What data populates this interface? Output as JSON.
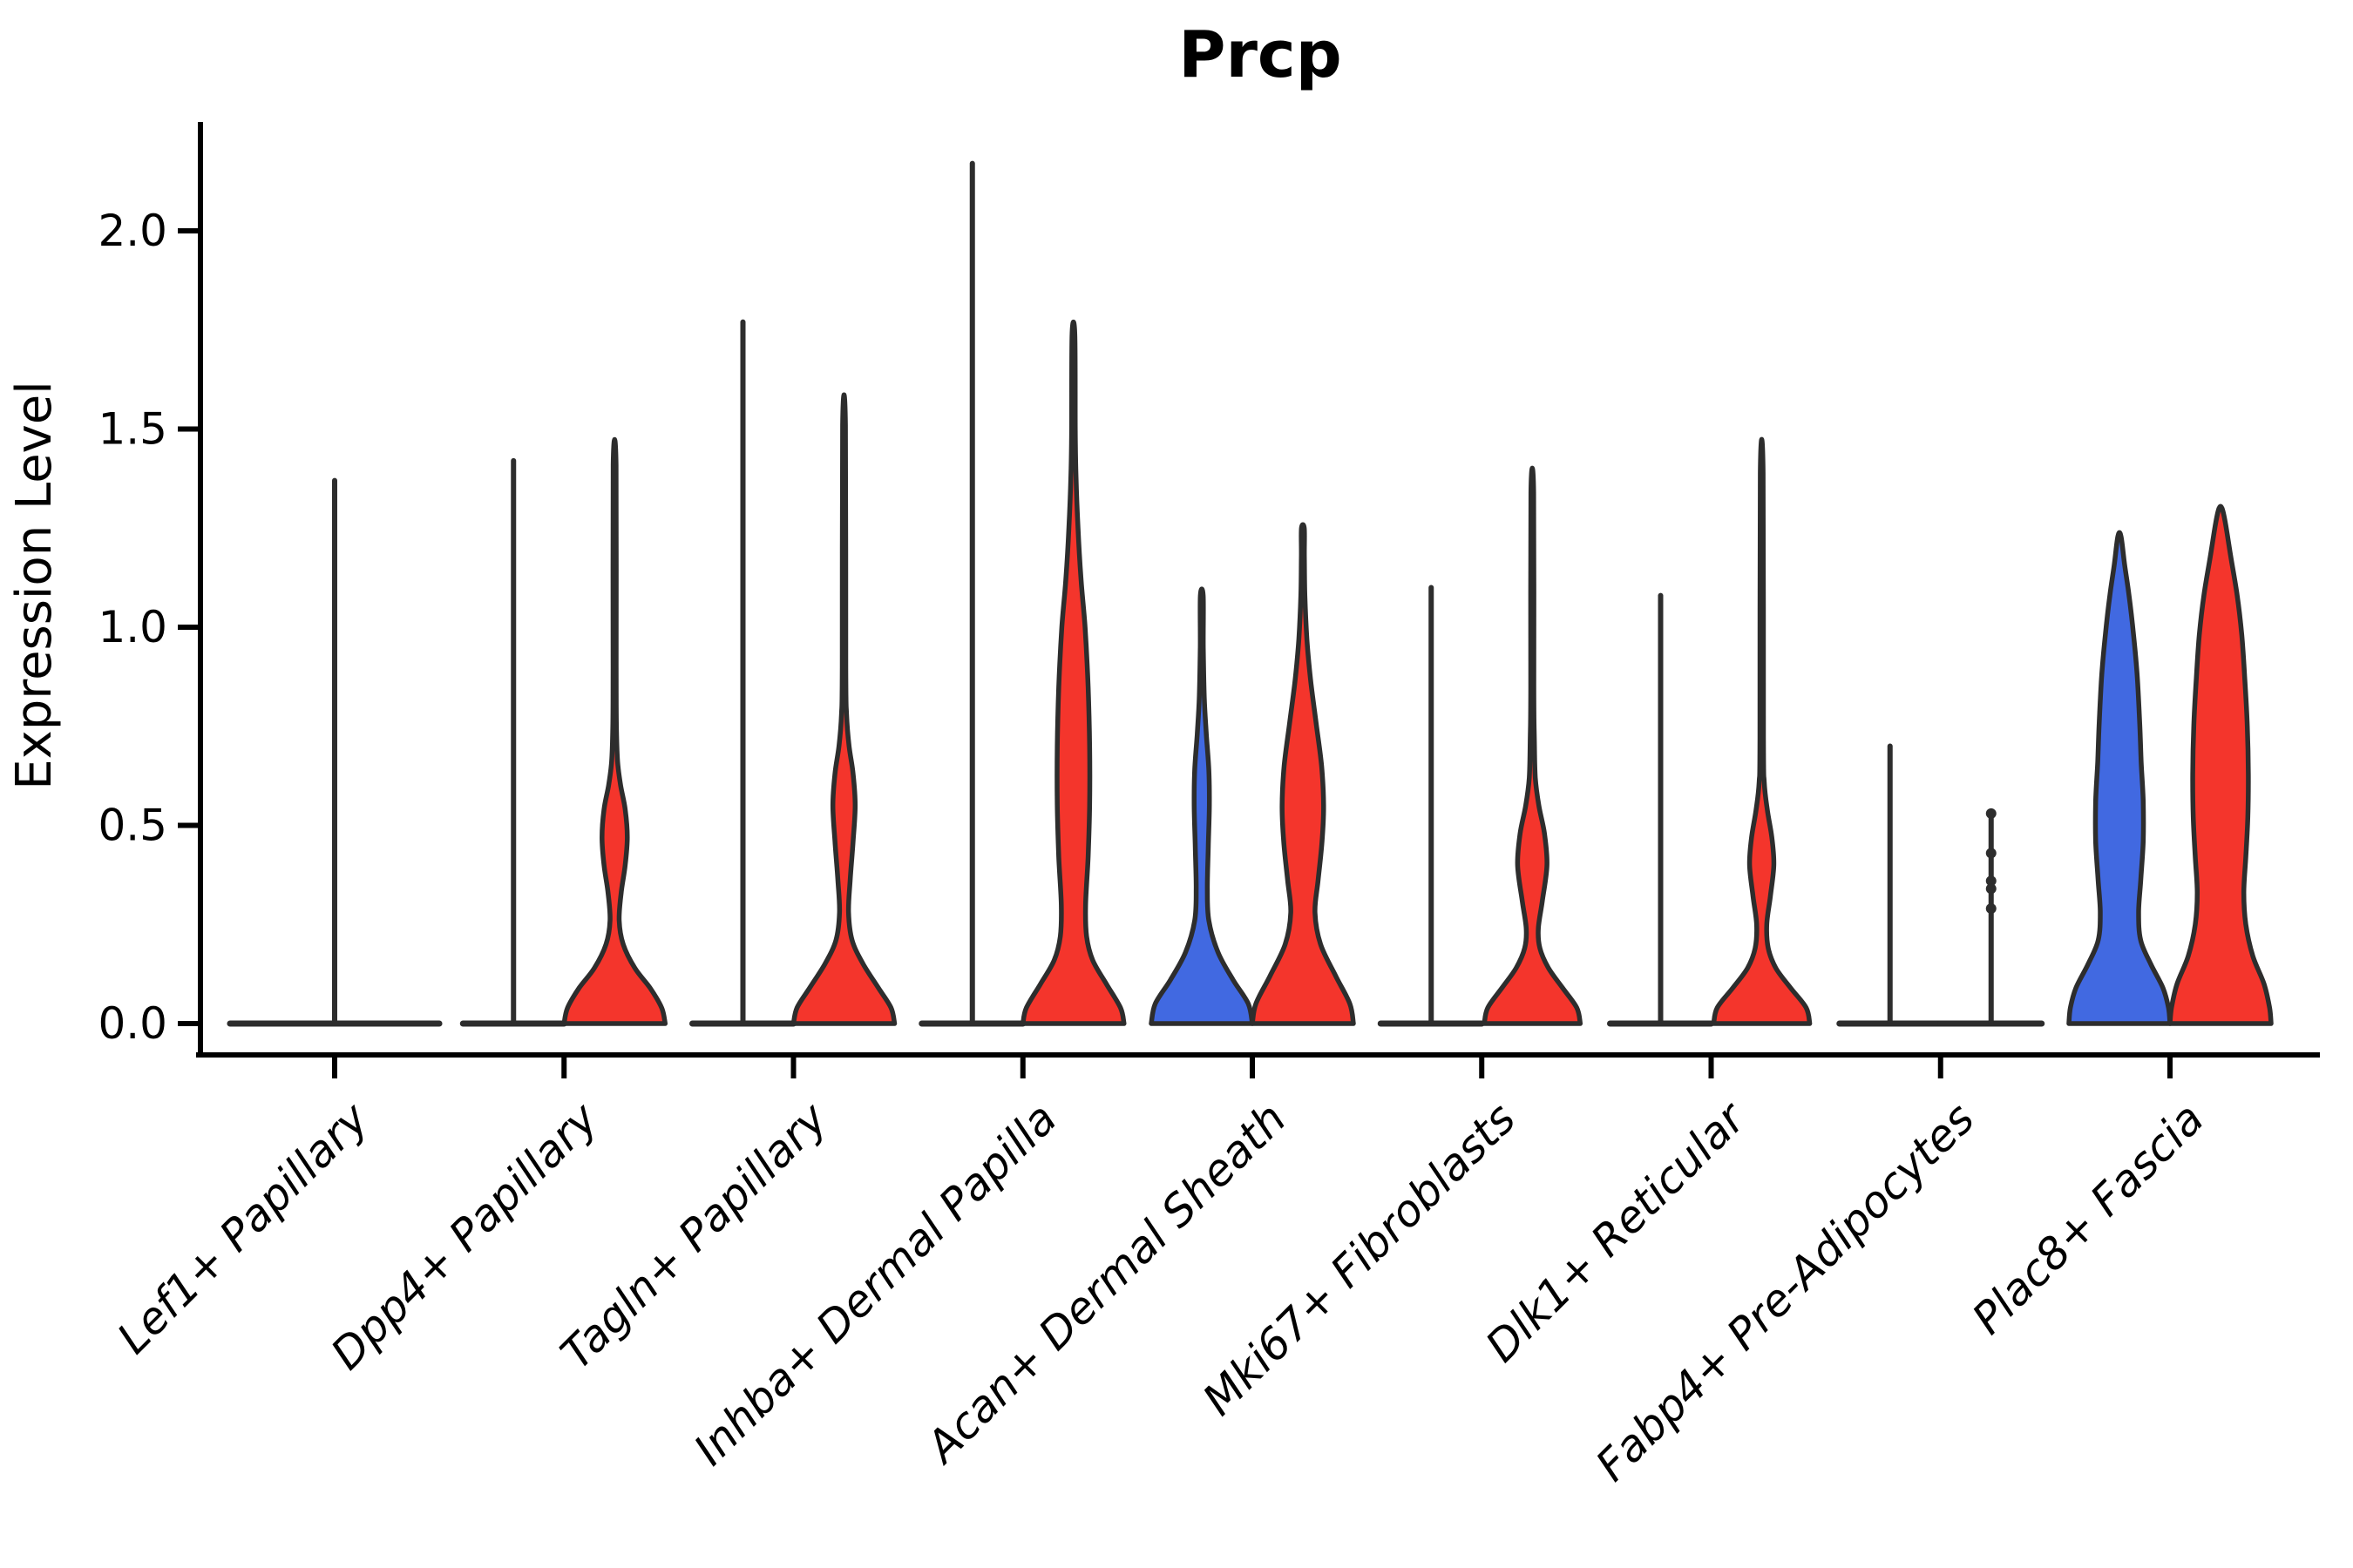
{
  "chart_data": {
    "type": "violin",
    "title": "Prcp",
    "xlabel": "",
    "ylabel": "Expression Level",
    "yticks": [
      0.0,
      0.5,
      1.0,
      1.5,
      2.0
    ],
    "ytick_labels": [
      "0.0",
      "0.5",
      "1.0",
      "1.5",
      "2.0"
    ],
    "ylim": [
      -0.08,
      2.27
    ],
    "grid": false,
    "legend": "none",
    "colors": {
      "blue": "#4169e1",
      "red": "#f4352c",
      "outline": "#2d2d2d",
      "axis": "#000000"
    },
    "categories": [
      "Lef1+ Papillary",
      "Dpp4+ Papillary",
      "Tagln+ Papillary",
      "Inhba+ Dermal Papilla",
      "Acan+ Dermal Sheath",
      "Mki67+ Fibroblasts",
      "Dlk1+ Reticular",
      "Fabp4+ Pre-Adipocytes",
      "Plac8+ Fascia"
    ],
    "violins": [
      {
        "category": "Lef1+ Papillary",
        "side": "full",
        "color": "none",
        "flat": true,
        "max": 1.37,
        "halfwidth_frac": 2.07
      },
      {
        "category": "Dpp4+ Papillary",
        "side": "left",
        "color": "blue",
        "flat": true,
        "max": 1.42
      },
      {
        "category": "Dpp4+ Papillary",
        "side": "right",
        "color": "red",
        "flat": false,
        "max": 1.41,
        "profile": [
          [
            0,
            1.0
          ],
          [
            0.04,
            0.93
          ],
          [
            0.09,
            0.7
          ],
          [
            0.14,
            0.4
          ],
          [
            0.2,
            0.17
          ],
          [
            0.26,
            0.09
          ],
          [
            0.33,
            0.13
          ],
          [
            0.4,
            0.21
          ],
          [
            0.47,
            0.25
          ],
          [
            0.54,
            0.21
          ],
          [
            0.6,
            0.12
          ],
          [
            0.66,
            0.06
          ],
          [
            0.75,
            0.035
          ],
          [
            0.9,
            0.03
          ]
        ]
      },
      {
        "category": "Tagln+ Papillary",
        "side": "left",
        "color": "blue",
        "flat": true,
        "max": 1.77
      },
      {
        "category": "Tagln+ Papillary",
        "side": "right",
        "color": "red",
        "flat": false,
        "max": 1.51,
        "profile": [
          [
            0,
            1.0
          ],
          [
            0.04,
            0.93
          ],
          [
            0.09,
            0.68
          ],
          [
            0.15,
            0.38
          ],
          [
            0.21,
            0.16
          ],
          [
            0.28,
            0.09
          ],
          [
            0.36,
            0.12
          ],
          [
            0.46,
            0.18
          ],
          [
            0.55,
            0.22
          ],
          [
            0.63,
            0.18
          ],
          [
            0.7,
            0.1
          ],
          [
            0.78,
            0.05
          ],
          [
            0.9,
            0.035
          ]
        ]
      },
      {
        "category": "Inhba+ Dermal Papilla",
        "side": "left",
        "color": "blue",
        "flat": true,
        "max": 2.17
      },
      {
        "category": "Inhba+ Dermal Papilla",
        "side": "right",
        "color": "red",
        "flat": false,
        "max": 1.74,
        "profile": [
          [
            0,
            1.0
          ],
          [
            0.04,
            0.93
          ],
          [
            0.1,
            0.65
          ],
          [
            0.16,
            0.38
          ],
          [
            0.22,
            0.26
          ],
          [
            0.3,
            0.24
          ],
          [
            0.42,
            0.29
          ],
          [
            0.55,
            0.32
          ],
          [
            0.7,
            0.32
          ],
          [
            0.85,
            0.29
          ],
          [
            1.0,
            0.23
          ],
          [
            1.12,
            0.15
          ],
          [
            1.25,
            0.09
          ],
          [
            1.38,
            0.05
          ],
          [
            1.5,
            0.035
          ]
        ]
      },
      {
        "category": "Acan+ Dermal Sheath",
        "side": "left",
        "color": "blue",
        "flat": false,
        "max": 1.08,
        "profile": [
          [
            0,
            1.0
          ],
          [
            0.05,
            0.92
          ],
          [
            0.11,
            0.62
          ],
          [
            0.18,
            0.32
          ],
          [
            0.26,
            0.14
          ],
          [
            0.34,
            0.11
          ],
          [
            0.45,
            0.13
          ],
          [
            0.55,
            0.15
          ],
          [
            0.64,
            0.14
          ],
          [
            0.73,
            0.09
          ],
          [
            0.82,
            0.05
          ],
          [
            0.95,
            0.03
          ]
        ]
      },
      {
        "category": "Acan+ Dermal Sheath",
        "side": "right",
        "color": "red",
        "flat": false,
        "max": 1.25,
        "profile": [
          [
            0,
            1.0
          ],
          [
            0.05,
            0.93
          ],
          [
            0.12,
            0.65
          ],
          [
            0.2,
            0.35
          ],
          [
            0.28,
            0.24
          ],
          [
            0.36,
            0.3
          ],
          [
            0.46,
            0.38
          ],
          [
            0.55,
            0.41
          ],
          [
            0.65,
            0.37
          ],
          [
            0.76,
            0.26
          ],
          [
            0.87,
            0.15
          ],
          [
            0.97,
            0.08
          ],
          [
            1.08,
            0.04
          ],
          [
            1.18,
            0.03
          ]
        ]
      },
      {
        "category": "Mki67+ Fibroblasts",
        "side": "left",
        "color": "blue",
        "flat": true,
        "max": 1.1
      },
      {
        "category": "Mki67+ Fibroblasts",
        "side": "right",
        "color": "red",
        "flat": false,
        "max": 1.34,
        "profile": [
          [
            0,
            0.95
          ],
          [
            0.04,
            0.88
          ],
          [
            0.09,
            0.6
          ],
          [
            0.14,
            0.32
          ],
          [
            0.19,
            0.15
          ],
          [
            0.24,
            0.12
          ],
          [
            0.31,
            0.2
          ],
          [
            0.4,
            0.29
          ],
          [
            0.48,
            0.24
          ],
          [
            0.55,
            0.13
          ],
          [
            0.62,
            0.06
          ],
          [
            0.72,
            0.04
          ],
          [
            0.85,
            0.03
          ]
        ]
      },
      {
        "category": "Dlk1+ Reticular",
        "side": "left",
        "color": "blue",
        "flat": true,
        "max": 1.08
      },
      {
        "category": "Dlk1+ Reticular",
        "side": "right",
        "color": "red",
        "flat": false,
        "max": 1.39,
        "profile": [
          [
            0,
            0.95
          ],
          [
            0.04,
            0.88
          ],
          [
            0.09,
            0.57
          ],
          [
            0.14,
            0.28
          ],
          [
            0.19,
            0.13
          ],
          [
            0.25,
            0.1
          ],
          [
            0.32,
            0.17
          ],
          [
            0.4,
            0.24
          ],
          [
            0.47,
            0.2
          ],
          [
            0.54,
            0.11
          ],
          [
            0.61,
            0.05
          ],
          [
            0.72,
            0.035
          ]
        ]
      },
      {
        "category": "Fabp4+ Pre-Adipocytes",
        "side": "left",
        "color": "blue",
        "flat": true,
        "max": 0.7
      },
      {
        "category": "Fabp4+ Pre-Adipocytes",
        "side": "right",
        "color": "red",
        "flat": true,
        "max": 0.53,
        "dots": [
          0.53,
          0.43,
          0.36,
          0.34,
          0.29
        ]
      },
      {
        "category": "Plac8+ Fascia",
        "side": "left",
        "color": "blue",
        "flat": false,
        "max": 1.23,
        "profile": [
          [
            0,
            1.0
          ],
          [
            0.04,
            0.97
          ],
          [
            0.09,
            0.86
          ],
          [
            0.15,
            0.62
          ],
          [
            0.21,
            0.42
          ],
          [
            0.28,
            0.38
          ],
          [
            0.36,
            0.42
          ],
          [
            0.46,
            0.47
          ],
          [
            0.56,
            0.47
          ],
          [
            0.66,
            0.43
          ],
          [
            0.76,
            0.4
          ],
          [
            0.88,
            0.35
          ],
          [
            0.98,
            0.28
          ],
          [
            1.08,
            0.19
          ],
          [
            1.16,
            0.1
          ],
          [
            1.23,
            0.03
          ]
        ],
        "pointed": true
      },
      {
        "category": "Plac8+ Fascia",
        "side": "right",
        "color": "red",
        "flat": false,
        "max": 1.3,
        "profile": [
          [
            0,
            1.0
          ],
          [
            0.04,
            0.97
          ],
          [
            0.1,
            0.86
          ],
          [
            0.17,
            0.64
          ],
          [
            0.25,
            0.5
          ],
          [
            0.33,
            0.46
          ],
          [
            0.42,
            0.5
          ],
          [
            0.52,
            0.54
          ],
          [
            0.63,
            0.55
          ],
          [
            0.75,
            0.53
          ],
          [
            0.87,
            0.48
          ],
          [
            0.98,
            0.42
          ],
          [
            1.08,
            0.33
          ],
          [
            1.18,
            0.2
          ],
          [
            1.26,
            0.1
          ],
          [
            1.3,
            0.03
          ]
        ],
        "pointed": true
      }
    ]
  }
}
